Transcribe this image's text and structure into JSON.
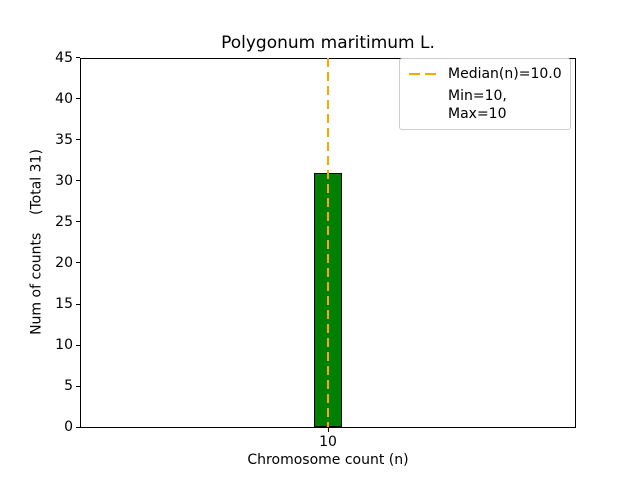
{
  "chart_data": {
    "type": "bar",
    "title": "Polygonum maritimum L.",
    "xlabel": "Chromosome count (n)",
    "ylabel": "Num of counts    (Total 31)",
    "categories": [
      "10"
    ],
    "values": [
      31
    ],
    "total_counts": 31,
    "ylim": [
      0,
      45
    ],
    "yticks": [
      0,
      5,
      10,
      15,
      20,
      25,
      30,
      35,
      40,
      45
    ],
    "grid": false,
    "bar_color": "#008000",
    "bar_edge_color": "#000000",
    "median_line": {
      "value": 10.0,
      "color": "#FFA500",
      "style": "dashed"
    },
    "legend": {
      "position": "upper-right",
      "entries": [
        {
          "marker": "dashed-line",
          "color": "#FFA500",
          "label": "Median(n)=10.0"
        },
        {
          "marker": "none",
          "color": "",
          "label": "Min=10, Max=10"
        }
      ]
    }
  }
}
